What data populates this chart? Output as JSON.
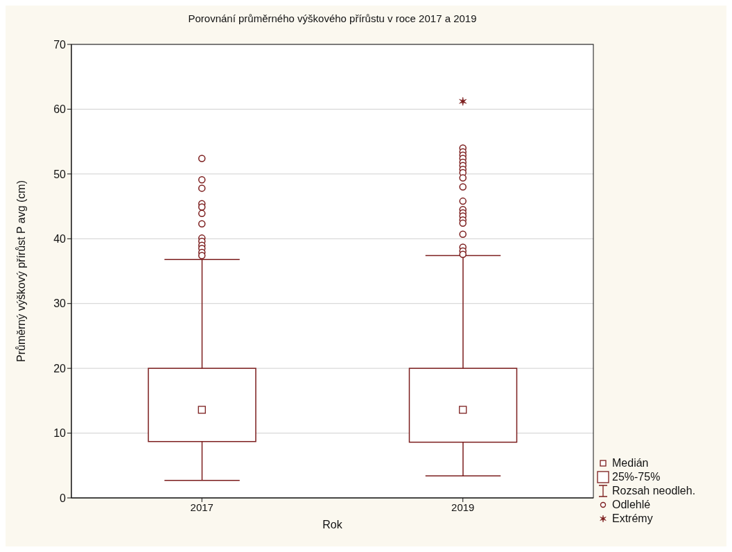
{
  "chart_data": {
    "type": "box",
    "title": "Porovnání průměrného výškového přírůstu v roce 2017 a 2019",
    "xlabel": "Rok",
    "ylabel": "Průměrný výškový přírůst P avg (cm)",
    "categories": [
      "2017",
      "2019"
    ],
    "ylim": [
      0,
      70
    ],
    "yticks": [
      0,
      10,
      20,
      30,
      40,
      50,
      60,
      70
    ],
    "grid": "y",
    "legend": "bottom right",
    "annotations": [
      "Medián",
      "25%-75%",
      "Rozsah neodleh.",
      "Odlehlé"
    ],
    "series": [
      {
        "type": "box",
        "color": "#7b1c1c",
        "boxes": [
          {
            "low": 2.7,
            "q1": 8.7,
            "median": 13.6,
            "q3": 20,
            "high": 36.8,
            "outliers": [
              52.4,
              49.1,
              47.8,
              45.4,
              44.9,
              43.9,
              42.3,
              40.1,
              39.6,
              39.0,
              38.5,
              37.9,
              37.4
            ]
          },
          {
            "low": 3.4,
            "q1": 8.6,
            "median": 13.6,
            "q3": 20,
            "high": 37.4,
            "outliers": [
              54.0,
              53.4,
              52.9,
              52.4,
              51.8,
              51.3,
              50.7,
              50.2,
              49.4,
              48.0,
              45.8,
              44.5,
              44.0,
              43.5,
              42.9,
              42.4,
              40.7,
              38.7,
              38.1,
              37.6
            ]
          }
        ]
      },
      {
        "type": "scatter",
        "name": "Extrémy",
        "color": "#7b1c1c",
        "marker": "cross",
        "values": [
          null,
          61.2
        ]
      }
    ]
  }
}
